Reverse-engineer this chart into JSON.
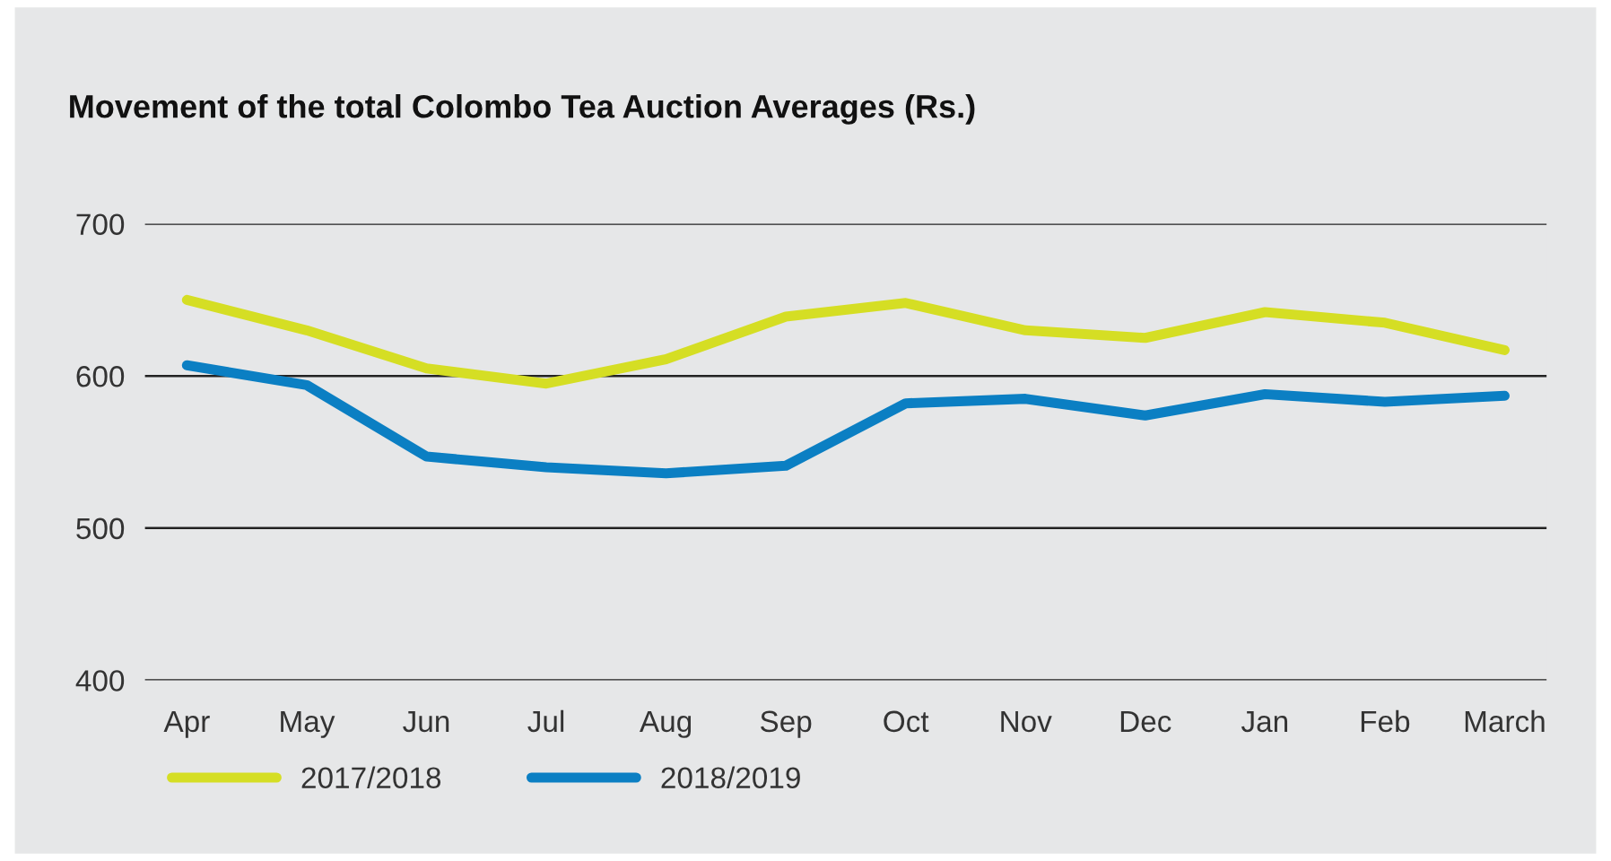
{
  "chart_data": {
    "type": "line",
    "title": "Movement of the total Colombo Tea Auction Averages (Rs.)",
    "categories": [
      "Apr",
      "May",
      "Jun",
      "Jul",
      "Aug",
      "Sep",
      "Oct",
      "Nov",
      "Dec",
      "Jan",
      "Feb",
      "March"
    ],
    "series": [
      {
        "name": "2017/2018",
        "color": "#d5de24",
        "values": [
          650,
          630,
          605,
          595,
          611,
          639,
          648,
          630,
          625,
          642,
          635,
          617
        ]
      },
      {
        "name": "2018/2019",
        "color": "#0b7fc3",
        "values": [
          607,
          594,
          547,
          540,
          536,
          541,
          582,
          585,
          574,
          588,
          583,
          587
        ]
      }
    ],
    "ylim": [
      400,
      700
    ],
    "yticks": [
      400,
      500,
      600,
      700
    ],
    "grid": "y",
    "legend": "bottom left",
    "marker": "none",
    "line_style": "solid"
  }
}
